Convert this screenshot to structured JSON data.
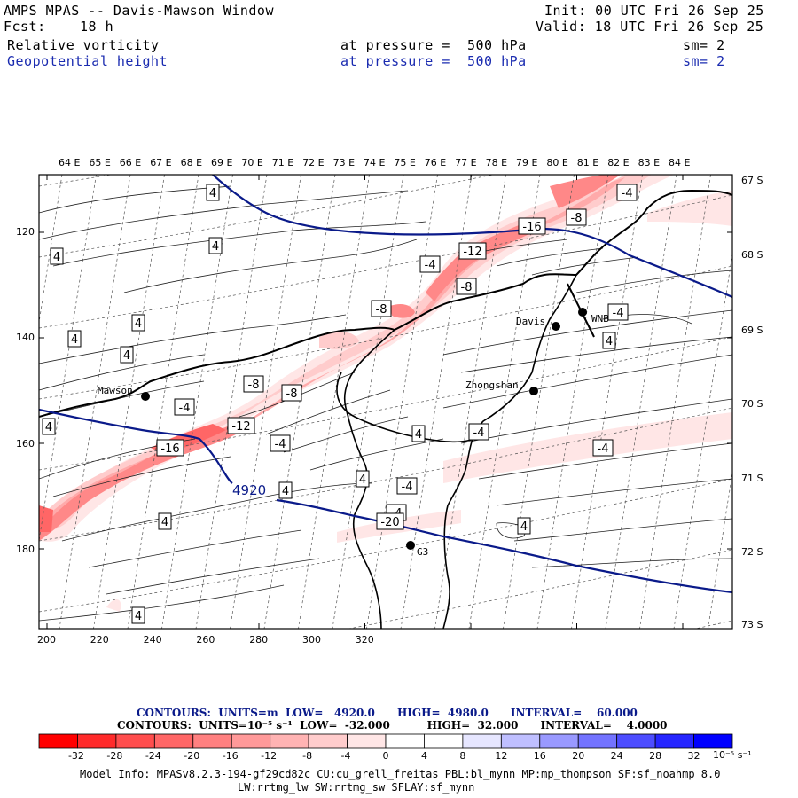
{
  "header": {
    "title": "AMPS MPAS -- Davis-Mawson Window",
    "fcst_label": "Fcst:",
    "fcst_value": "18 h",
    "init": "Init: 00 UTC Fri 26 Sep 25",
    "valid": "Valid: 18 UTC Fri 26 Sep 25",
    "field1": {
      "name": "Relative vorticity",
      "level": "at pressure =  500 hPa",
      "smooth": "sm= 2"
    },
    "field2": {
      "name": "Geopotential height",
      "level": "at pressure =  500 hPa",
      "smooth": "sm= 2"
    }
  },
  "map": {
    "top_longitudes": [
      "64 E",
      "65 E",
      "66 E",
      "67 E",
      "68 E",
      "69 E",
      "70 E",
      "71 E",
      "72 E",
      "73 E",
      "74 E",
      "75 E",
      "76 E",
      "77 E",
      "78 E",
      "79 E",
      "80 E",
      "81 E",
      "82 E",
      "83 E",
      "84 E"
    ],
    "right_latitudes": [
      "67 S",
      "68 S",
      "69 S",
      "70 S",
      "71 S",
      "72 S",
      "73 S"
    ],
    "left_ticks": [
      "120",
      "140",
      "160",
      "180"
    ],
    "bottom_ticks": [
      "200",
      "220",
      "240",
      "260",
      "280",
      "300",
      "320"
    ],
    "stations": [
      {
        "name": "Mawson"
      },
      {
        "name": "Davis"
      },
      {
        "name": "Zhongshan"
      },
      {
        "name": "G3"
      },
      {
        "name": "WNB"
      }
    ],
    "height_contour_label": "4920",
    "vorticity_labels": [
      "4",
      "4",
      "4",
      "4",
      "4",
      "4",
      "4",
      "4",
      "4",
      "4",
      "4",
      "4",
      "4",
      "4",
      "-4",
      "-4",
      "-4",
      "-4",
      "-4",
      "-4",
      "-4",
      "-4",
      "-4",
      "-8",
      "-8",
      "-8",
      "-8",
      "-8",
      "-12",
      "-12",
      "-16",
      "-16",
      "-20"
    ]
  },
  "contours_info": {
    "line1": "CONTOURS:  UNITS=m  LOW=   4920.0      HIGH=  4980.0      INTERVAL=    60.000",
    "line2": "CONTOURS:  UNITS=10⁻⁵ s⁻¹  LOW=  -32.000          HIGH=  32.000      INTERVAL=    4.0000"
  },
  "colorbar": {
    "ticks": [
      "-32",
      "-28",
      "-24",
      "-20",
      "-16",
      "-12",
      "-8",
      "-4",
      "0",
      "4",
      "8",
      "12",
      "16",
      "20",
      "24",
      "28",
      "32"
    ],
    "unit": "10⁻⁵ s⁻¹",
    "colors": [
      "#ff0000",
      "#ff2222",
      "#ff4444",
      "#ff6666",
      "#ff8888",
      "#ffaaaa",
      "#ffcccc",
      "#ffe6e6",
      "#ffffff",
      "#ffffff",
      "#e6e6ff",
      "#ccccff",
      "#aaaaff",
      "#8888ff",
      "#6666ff",
      "#4444ff",
      "#0000ff"
    ]
  },
  "footer": {
    "line1": "Model Info: MPASv8.2.3-194-gf29cd82c CU:cu_grell_freitas PBL:bl_mynn MP:mp_thompson SF:sf_noahmp 8.0",
    "line2": "LW:rrtmg_lw SW:rrtmg_sw SFLAY:sf_mynn"
  }
}
